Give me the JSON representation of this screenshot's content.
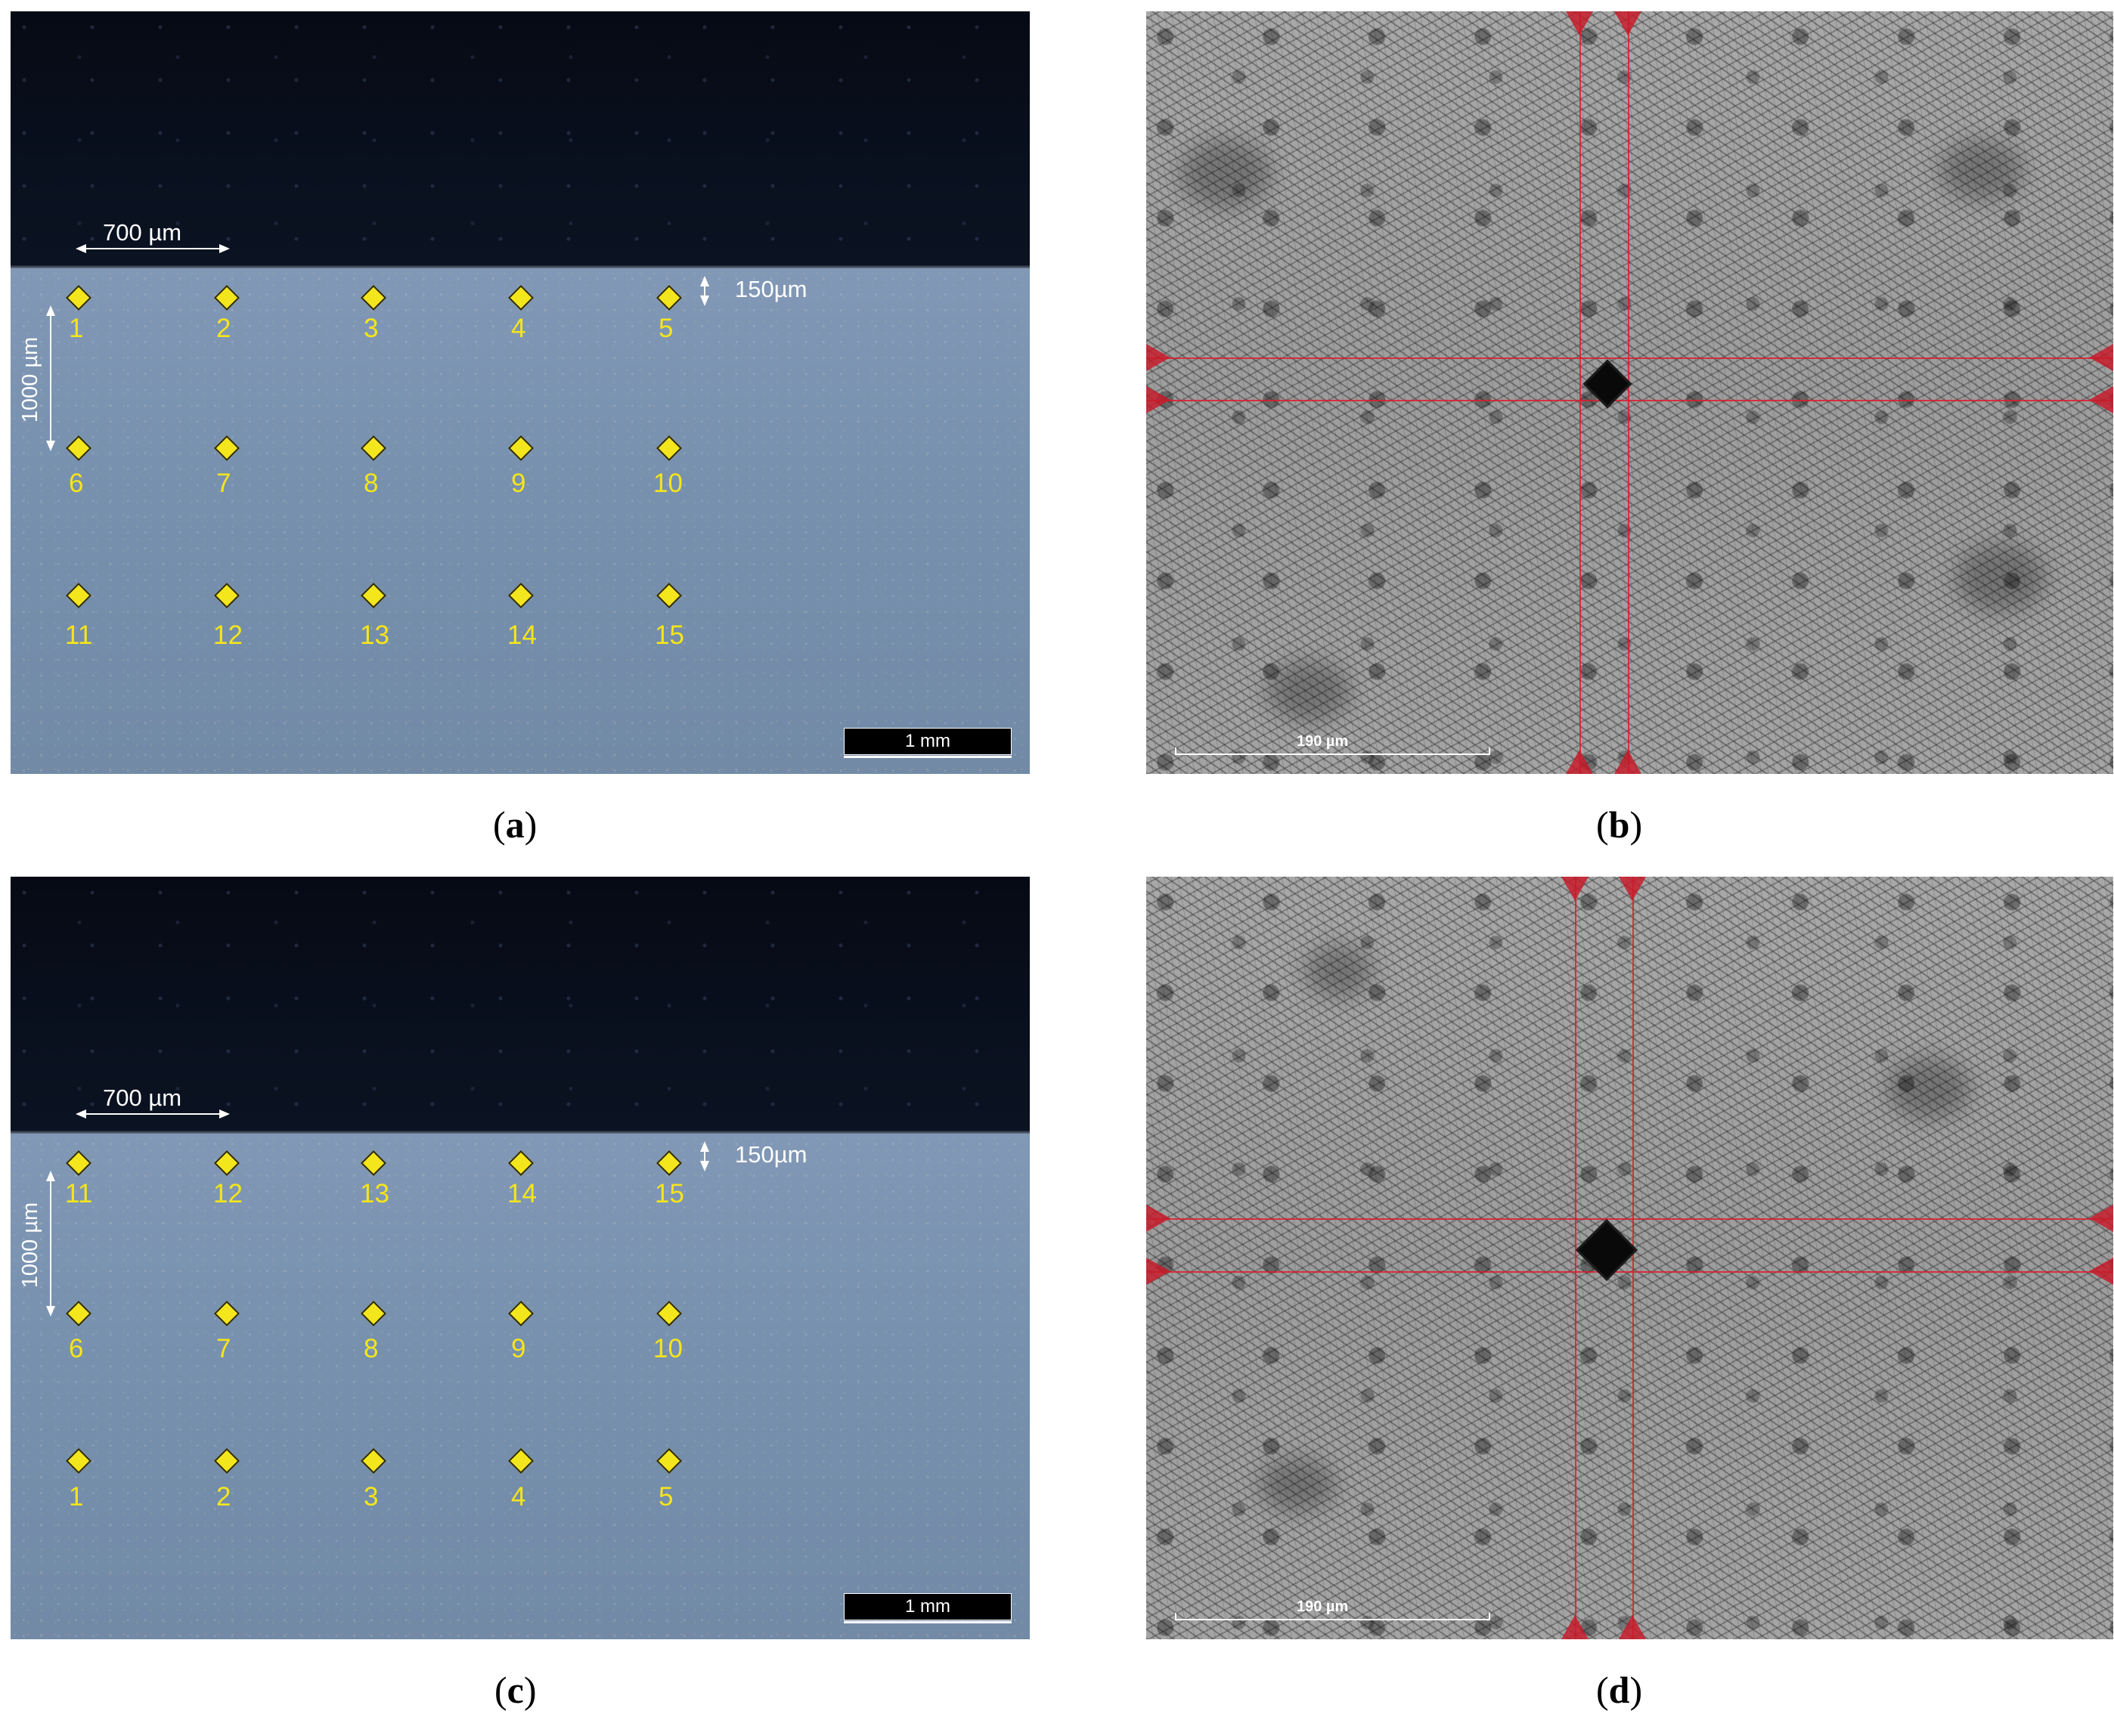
{
  "panels": {
    "a": {
      "caption": "a",
      "dimension_horizontal": "700 µm",
      "dimension_vertical": "1000 µm",
      "dimension_edge": "150µm",
      "scale_bar": "1 mm",
      "points_row1": [
        "1",
        "2",
        "3",
        "4",
        "5"
      ],
      "points_row2": [
        "6",
        "7",
        "8",
        "9",
        "10"
      ],
      "points_row3": [
        "11",
        "12",
        "13",
        "14",
        "15"
      ]
    },
    "b": {
      "caption": "b",
      "scale_bar": "190 µm"
    },
    "c": {
      "caption": "c",
      "dimension_horizontal": "700 µm",
      "dimension_vertical": "1000 µm",
      "dimension_edge": "150µm",
      "scale_bar": "1 mm",
      "points_row1": [
        "11",
        "12",
        "13",
        "14",
        "15"
      ],
      "points_row2": [
        "6",
        "7",
        "8",
        "9",
        "10"
      ],
      "points_row3": [
        "1",
        "2",
        "3",
        "4",
        "5"
      ]
    },
    "d": {
      "caption": "d",
      "scale_bar": "190 µm"
    }
  },
  "colors": {
    "marker_yellow": "#f4e61c",
    "crosshair_red": "#e11928",
    "resin_dark": "#07101c",
    "steel_blue_gray": "#7790ae"
  }
}
